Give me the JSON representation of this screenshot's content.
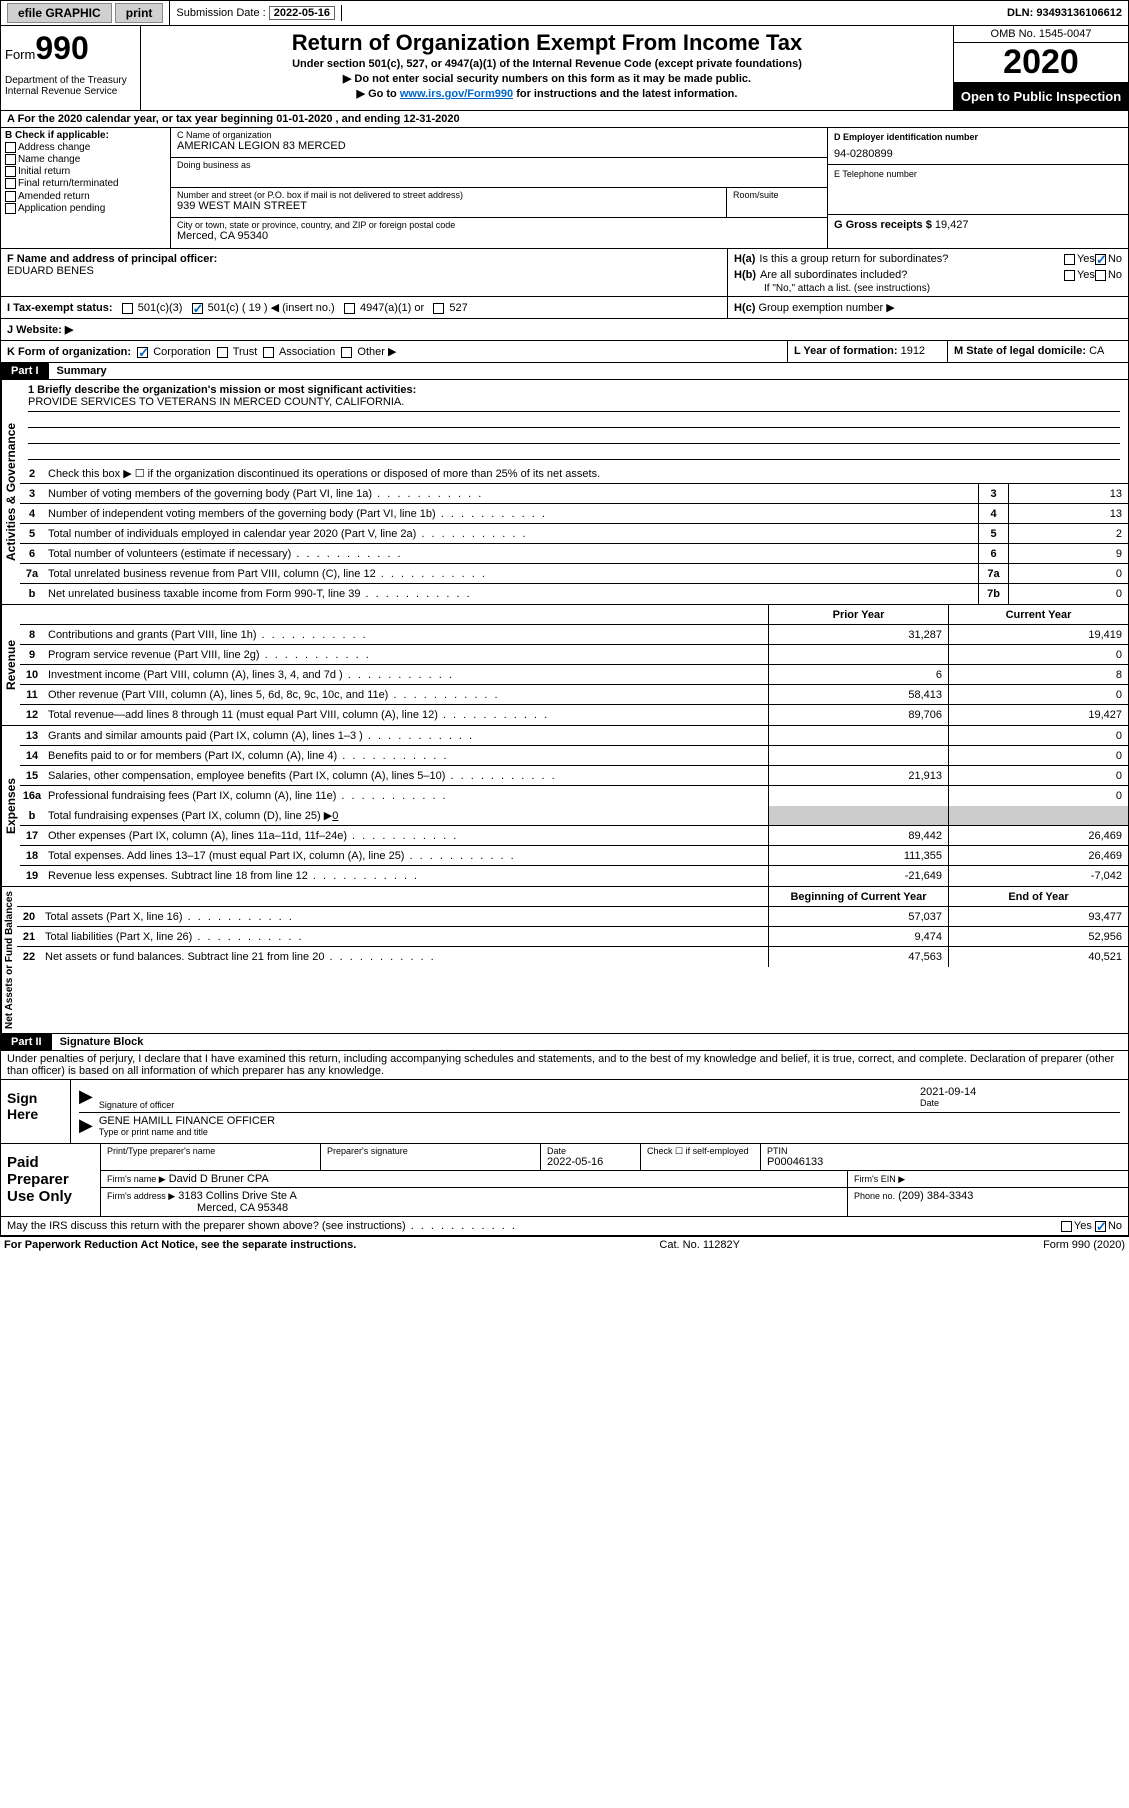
{
  "topbar": {
    "efile": "efile GRAPHIC",
    "print": "print",
    "submission_label": "Submission Date :",
    "submission_date": "2022-05-16",
    "dln": "DLN: 93493136106612"
  },
  "header": {
    "form_label": "Form",
    "form_num": "990",
    "dept": "Department of the Treasury\nInternal Revenue Service",
    "title": "Return of Organization Exempt From Income Tax",
    "subtitle": "Under section 501(c), 527, or 4947(a)(1) of the Internal Revenue Code (except private foundations)",
    "instr1": "▶ Do not enter social security numbers on this form as it may be made public.",
    "instr2_pre": "▶ Go to ",
    "instr2_link": "www.irs.gov/Form990",
    "instr2_post": " for instructions and the latest information.",
    "omb": "OMB No. 1545-0047",
    "year": "2020",
    "open_public": "Open to Public Inspection"
  },
  "section_a": "A For the 2020 calendar year, or tax year beginning 01-01-2020    , and ending 12-31-2020",
  "check_b": {
    "label": "B Check if applicable:",
    "items": [
      "Address change",
      "Name change",
      "Initial return",
      "Final return/terminated",
      "Amended return",
      "Application pending"
    ]
  },
  "org": {
    "name_label": "C Name of organization",
    "name": "AMERICAN LEGION 83 MERCED",
    "dba_label": "Doing business as",
    "dba": "",
    "street_label": "Number and street (or P.O. box if mail is not delivered to street address)",
    "street": "939 WEST MAIN STREET",
    "room_label": "Room/suite",
    "city_label": "City or town, state or province, country, and ZIP or foreign postal code",
    "city": "Merced, CA  95340",
    "officer_label": "F  Name and address of principal officer:",
    "officer": "EDUARD BENES"
  },
  "right": {
    "ein_label": "D Employer identification number",
    "ein": "94-0280899",
    "phone_label": "E Telephone number",
    "phone": "",
    "gross_label": "G Gross receipts $",
    "gross": "19,427"
  },
  "h": {
    "a": "Is this a group return for subordinates?",
    "b": "Are all subordinates included?",
    "b_note": "If \"No,\" attach a list. (see instructions)",
    "c": "Group exemption number ▶"
  },
  "tax_status": {
    "label": "I   Tax-exempt status:",
    "opts": [
      "501(c)(3)",
      "501(c) ( 19 ) ◀ (insert no.)",
      "4947(a)(1) or",
      "527"
    ]
  },
  "website_label": "J   Website: ▶",
  "k_label": "K Form of organization:",
  "k_opts": [
    "Corporation",
    "Trust",
    "Association",
    "Other ▶"
  ],
  "l_label": "L Year of formation:",
  "l_val": "1912",
  "m_label": "M State of legal domicile:",
  "m_val": "CA",
  "part1": {
    "label": "Part I",
    "title": "Summary",
    "mission_label": "1  Briefly describe the organization's mission or most significant activities:",
    "mission": "PROVIDE SERVICES TO VETERANS IN MERCED COUNTY, CALIFORNIA.",
    "line2": "Check this box ▶ ☐  if the organization discontinued its operations or disposed of more than 25% of its net assets.",
    "governance_label": "Activities & Governance",
    "revenue_label": "Revenue",
    "expenses_label": "Expenses",
    "netassets_label": "Net Assets or Fund Balances",
    "gov_lines": [
      {
        "n": "3",
        "t": "Number of voting members of the governing body (Part VI, line 1a)",
        "b": "3",
        "v": "13"
      },
      {
        "n": "4",
        "t": "Number of independent voting members of the governing body (Part VI, line 1b)",
        "b": "4",
        "v": "13"
      },
      {
        "n": "5",
        "t": "Total number of individuals employed in calendar year 2020 (Part V, line 2a)",
        "b": "5",
        "v": "2"
      },
      {
        "n": "6",
        "t": "Total number of volunteers (estimate if necessary)",
        "b": "6",
        "v": "9"
      },
      {
        "n": "7a",
        "t": "Total unrelated business revenue from Part VIII, column (C), line 12",
        "b": "7a",
        "v": "0"
      },
      {
        "n": "b",
        "t": "Net unrelated business taxable income from Form 990-T, line 39",
        "b": "7b",
        "v": "0"
      }
    ],
    "prior_year": "Prior Year",
    "current_year": "Current Year",
    "rev_lines": [
      {
        "n": "8",
        "t": "Contributions and grants (Part VIII, line 1h)",
        "py": "31,287",
        "cy": "19,419"
      },
      {
        "n": "9",
        "t": "Program service revenue (Part VIII, line 2g)",
        "py": "",
        "cy": "0"
      },
      {
        "n": "10",
        "t": "Investment income (Part VIII, column (A), lines 3, 4, and 7d )",
        "py": "6",
        "cy": "8"
      },
      {
        "n": "11",
        "t": "Other revenue (Part VIII, column (A), lines 5, 6d, 8c, 9c, 10c, and 11e)",
        "py": "58,413",
        "cy": "0"
      },
      {
        "n": "12",
        "t": "Total revenue—add lines 8 through 11 (must equal Part VIII, column (A), line 12)",
        "py": "89,706",
        "cy": "19,427"
      }
    ],
    "exp_lines": [
      {
        "n": "13",
        "t": "Grants and similar amounts paid (Part IX, column (A), lines 1–3 )",
        "py": "",
        "cy": "0"
      },
      {
        "n": "14",
        "t": "Benefits paid to or for members (Part IX, column (A), line 4)",
        "py": "",
        "cy": "0"
      },
      {
        "n": "15",
        "t": "Salaries, other compensation, employee benefits (Part IX, column (A), lines 5–10)",
        "py": "21,913",
        "cy": "0"
      },
      {
        "n": "16a",
        "t": "Professional fundraising fees (Part IX, column (A), line 11e)",
        "py": "",
        "cy": "0"
      }
    ],
    "line16b": "Total fundraising expenses (Part IX, column (D), line 25) ▶",
    "line16b_val": "0",
    "exp_lines2": [
      {
        "n": "17",
        "t": "Other expenses (Part IX, column (A), lines 11a–11d, 11f–24e)",
        "py": "89,442",
        "cy": "26,469"
      },
      {
        "n": "18",
        "t": "Total expenses. Add lines 13–17 (must equal Part IX, column (A), line 25)",
        "py": "111,355",
        "cy": "26,469"
      },
      {
        "n": "19",
        "t": "Revenue less expenses. Subtract line 18 from line 12",
        "py": "-21,649",
        "cy": "-7,042"
      }
    ],
    "begin_year": "Beginning of Current Year",
    "end_year": "End of Year",
    "net_lines": [
      {
        "n": "20",
        "t": "Total assets (Part X, line 16)",
        "py": "57,037",
        "cy": "93,477"
      },
      {
        "n": "21",
        "t": "Total liabilities (Part X, line 26)",
        "py": "9,474",
        "cy": "52,956"
      },
      {
        "n": "22",
        "t": "Net assets or fund balances. Subtract line 21 from line 20",
        "py": "47,563",
        "cy": "40,521"
      }
    ]
  },
  "part2": {
    "label": "Part II",
    "title": "Signature Block",
    "declaration": "Under penalties of perjury, I declare that I have examined this return, including accompanying schedules and statements, and to the best of my knowledge and belief, it is true, correct, and complete. Declaration of preparer (other than officer) is based on all information of which preparer has any knowledge."
  },
  "sign": {
    "label": "Sign Here",
    "sig_label": "Signature of officer",
    "date_label": "Date",
    "date": "2021-09-14",
    "name": "GENE HAMILL  FINANCE OFFICER",
    "name_label": "Type or print name and title"
  },
  "prep": {
    "label": "Paid Preparer Use Only",
    "name_label": "Print/Type preparer's name",
    "sig_label": "Preparer's signature",
    "date_label": "Date",
    "date": "2022-05-16",
    "check_label": "Check ☐ if self-employed",
    "ptin_label": "PTIN",
    "ptin": "P00046133",
    "firm_label": "Firm's name    ▶",
    "firm": "David D Bruner CPA",
    "ein_label": "Firm's EIN ▶",
    "addr_label": "Firm's address ▶",
    "addr1": "3183 Collins Drive Ste A",
    "addr2": "Merced, CA  95348",
    "phone_label": "Phone no.",
    "phone": "(209) 384-3343"
  },
  "discuss": "May the IRS discuss this return with the preparer shown above? (see instructions)",
  "footer": {
    "left": "For Paperwork Reduction Act Notice, see the separate instructions.",
    "center": "Cat. No. 11282Y",
    "right": "Form 990 (2020)"
  }
}
